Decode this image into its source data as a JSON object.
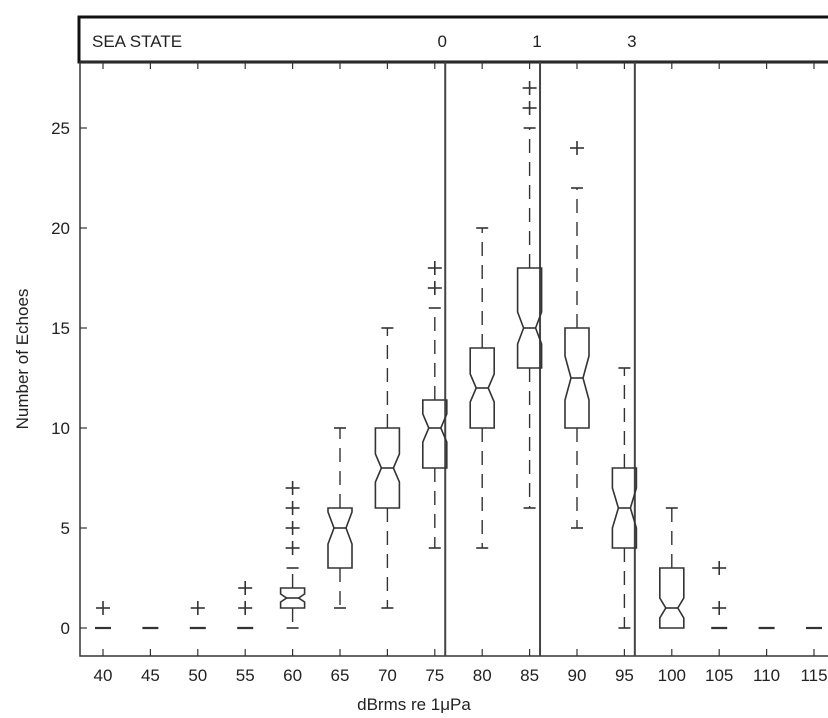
{
  "chart_data": {
    "type": "boxplot",
    "notched": true,
    "xlabel": "dBrms re 1μPa",
    "ylabel": "Number of Echoes",
    "categories": [
      "40",
      "45",
      "50",
      "55",
      "60",
      "65",
      "70",
      "75",
      "80",
      "85",
      "90",
      "95",
      "100",
      "105",
      "110",
      "115"
    ],
    "x_values": [
      40,
      45,
      50,
      55,
      60,
      65,
      70,
      75,
      80,
      85,
      90,
      95,
      100,
      105,
      110,
      115
    ],
    "ylim": [
      -1.4,
      28
    ],
    "yticks": [
      0,
      5,
      10,
      15,
      20,
      25
    ],
    "grid": false,
    "boxes": [
      {
        "x": 40,
        "q1": 0,
        "median": 0,
        "q3": 0,
        "whisker_low": 0,
        "whisker_high": 0,
        "notch_low": 0,
        "notch_high": 0,
        "outliers": [
          1
        ]
      },
      {
        "x": 45,
        "q1": 0,
        "median": 0,
        "q3": 0,
        "whisker_low": 0,
        "whisker_high": 0,
        "notch_low": 0,
        "notch_high": 0,
        "outliers": []
      },
      {
        "x": 50,
        "q1": 0,
        "median": 0,
        "q3": 0,
        "whisker_low": 0,
        "whisker_high": 0,
        "notch_low": 0,
        "notch_high": 0,
        "outliers": [
          1
        ]
      },
      {
        "x": 55,
        "q1": 0,
        "median": 0,
        "q3": 0,
        "whisker_low": 0,
        "whisker_high": 0,
        "notch_low": 0,
        "notch_high": 0,
        "outliers": [
          1,
          2
        ]
      },
      {
        "x": 60,
        "q1": 1,
        "median": 1.5,
        "q3": 2,
        "whisker_low": 0,
        "whisker_high": 3,
        "notch_low": 1.3,
        "notch_high": 1.7,
        "outliers": [
          4,
          5,
          6,
          7
        ]
      },
      {
        "x": 65,
        "q1": 3,
        "median": 5,
        "q3": 6,
        "whisker_low": 1,
        "whisker_high": 10,
        "notch_low": 4.2,
        "notch_high": 5.8,
        "outliers": []
      },
      {
        "x": 70,
        "q1": 6,
        "median": 8,
        "q3": 10,
        "whisker_low": 1,
        "whisker_high": 15,
        "notch_low": 7.3,
        "notch_high": 8.7,
        "outliers": []
      },
      {
        "x": 75,
        "q1": 8,
        "median": 10,
        "q3": 11.4,
        "whisker_low": 4,
        "whisker_high": 16,
        "notch_low": 9.3,
        "notch_high": 10.7,
        "outliers": [
          17,
          18
        ]
      },
      {
        "x": 80,
        "q1": 10,
        "median": 12,
        "q3": 14,
        "whisker_low": 4,
        "whisker_high": 20,
        "notch_low": 11.3,
        "notch_high": 12.7,
        "outliers": []
      },
      {
        "x": 85,
        "q1": 13,
        "median": 15,
        "q3": 18,
        "whisker_low": 6,
        "whisker_high": 25,
        "notch_low": 14.2,
        "notch_high": 15.8,
        "outliers": [
          26,
          27
        ]
      },
      {
        "x": 90,
        "q1": 10,
        "median": 12.5,
        "q3": 15,
        "whisker_low": 5,
        "whisker_high": 22,
        "notch_low": 11.4,
        "notch_high": 13.6,
        "outliers": [
          24
        ]
      },
      {
        "x": 95,
        "q1": 4,
        "median": 6,
        "q3": 8,
        "whisker_low": 0,
        "whisker_high": 13,
        "notch_low": 5,
        "notch_high": 7,
        "outliers": []
      },
      {
        "x": 100,
        "q1": 0,
        "median": 1,
        "q3": 3,
        "whisker_low": 0,
        "whisker_high": 6,
        "notch_low": 0.5,
        "notch_high": 1.5,
        "outliers": []
      },
      {
        "x": 105,
        "q1": 0,
        "median": 0,
        "q3": 0,
        "whisker_low": 0,
        "whisker_high": 0,
        "notch_low": 0,
        "notch_high": 0,
        "outliers": [
          1,
          3
        ]
      },
      {
        "x": 110,
        "q1": 0,
        "median": 0,
        "q3": 0,
        "whisker_low": 0,
        "whisker_high": 0,
        "notch_low": 0,
        "notch_high": 0,
        "outliers": []
      },
      {
        "x": 115,
        "q1": 0,
        "median": 0,
        "q3": 0,
        "whisker_low": 0,
        "whisker_high": 0,
        "notch_low": 0,
        "notch_high": 0,
        "outliers": []
      }
    ],
    "sea_state": {
      "label": "SEA STATE",
      "markers": [
        {
          "label": "0",
          "boundary_x": 76.1
        },
        {
          "label": "1",
          "boundary_x": 86.1
        },
        {
          "label": "3",
          "boundary_x": 96.1
        }
      ]
    },
    "colors": {
      "line": "#333333",
      "background": "#ffffff"
    }
  }
}
